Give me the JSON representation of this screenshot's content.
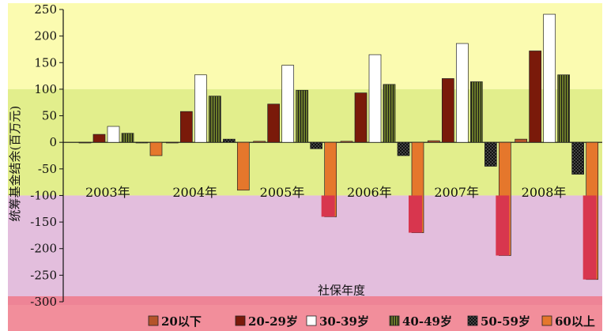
{
  "chart_data": {
    "type": "bar",
    "ylabel": "统筹基金结余(百万元)",
    "xlabel": "社保年度",
    "categories": [
      "2003年",
      "2004年",
      "2005年",
      "2006年",
      "2007年",
      "2008年"
    ],
    "ylim": [
      -300,
      250
    ],
    "yticks": [
      250,
      200,
      150,
      100,
      50,
      0,
      -50,
      -100,
      -150,
      -200,
      -250,
      -300
    ],
    "series": [
      {
        "name": "20以下",
        "values": [
          0,
          0,
          2,
          2,
          3,
          6
        ],
        "color": "#b5542a"
      },
      {
        "name": "20-29岁",
        "values": [
          15,
          58,
          72,
          93,
          120,
          172
        ],
        "color": "#7a1a0a"
      },
      {
        "name": "30-39岁",
        "values": [
          30,
          127,
          145,
          165,
          186,
          241
        ],
        "color": "#ffffff"
      },
      {
        "name": "40-49岁",
        "values": [
          17,
          87,
          98,
          109,
          114,
          127
        ],
        "color": "#6b7a2a"
      },
      {
        "name": "50-59岁",
        "values": [
          0,
          6,
          -12,
          -25,
          -45,
          -60
        ],
        "color": "#1a1a1a"
      },
      {
        "name": "60以上",
        "values": [
          -25,
          -90,
          -140,
          -170,
          -213,
          -258
        ],
        "color": "#e5772c"
      }
    ]
  },
  "page": {
    "background_bands": [
      "#fbfbb0",
      "#e2ee8c",
      "#e3bedd"
    ]
  }
}
